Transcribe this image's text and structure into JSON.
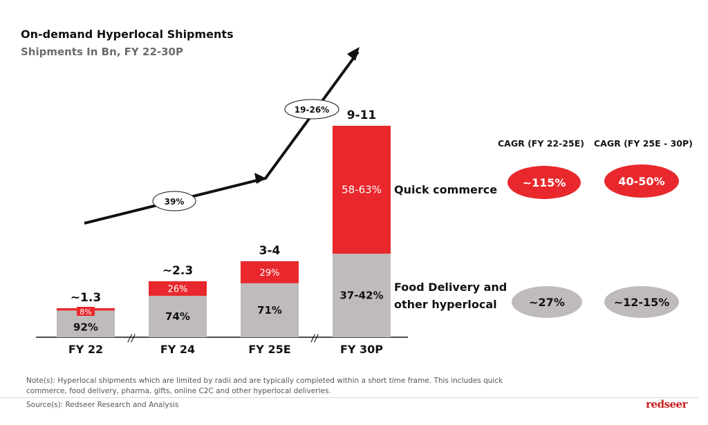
{
  "title": "On-demand Hyperlocal Shipments",
  "subtitle": "Shipments In Bn, FY 22-30P",
  "chart_data": {
    "type": "bar",
    "stacked": true,
    "categories": [
      "FY 22",
      "FY 24",
      "FY 25E",
      "FY 30P"
    ],
    "totals": [
      "~1.3",
      "~2.3",
      "3-4",
      "9-11"
    ],
    "total_values": [
      1.3,
      2.3,
      3.5,
      10
    ],
    "series": [
      {
        "name": "Food Delivery and other hyperlocal",
        "color": "#bfbbba",
        "share_labels": [
          "92%",
          "74%",
          "71%",
          "37-42%"
        ],
        "share_values": [
          0.92,
          0.74,
          0.71,
          0.395
        ]
      },
      {
        "name": "Quick commerce",
        "color": "#e8282c",
        "share_labels": [
          "8%",
          "26%",
          "29%",
          "58-63%"
        ],
        "share_values": [
          0.08,
          0.26,
          0.29,
          0.605
        ]
      }
    ],
    "growth_labels": [
      "39%",
      "19-26%"
    ],
    "axis_break_symbol": "//"
  },
  "cagr": {
    "headers": [
      "CAGR (FY 22-25E)",
      "CAGR (FY 25E - 30P)"
    ],
    "quick_commerce": [
      "~115%",
      "40-50%"
    ],
    "food_delivery": [
      "~27%",
      "~12-15%"
    ]
  },
  "segment_labels": {
    "quick_commerce": "Quick commerce",
    "food_line1": "Food Delivery and",
    "food_line2": "other hyperlocal"
  },
  "note_line1": "Note(s): Hyperlocal shipments which are limited by radii and are typically completed within a short time frame. This includes quick",
  "note_line2": "commerce, food delivery, pharma, gifts, online C2C and other hyperlocal deliveries.",
  "source": "Source(s):  Redseer Research and Analysis",
  "brand": "redseer",
  "colors": {
    "red": "#e8282c",
    "grey": "#bfbbba",
    "axis": "#111111"
  }
}
